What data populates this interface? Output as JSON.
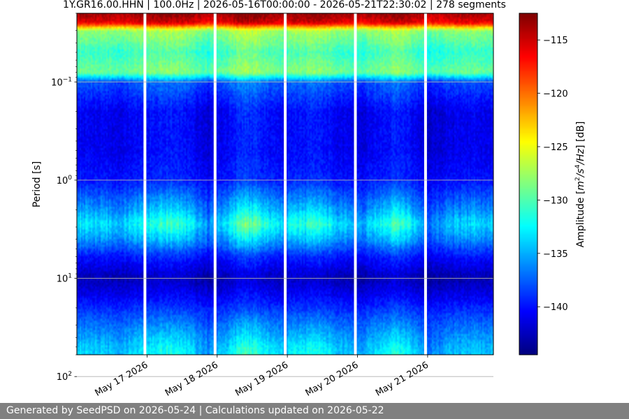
{
  "chart_data": {
    "type": "heatmap",
    "title": "1Y.GR16.00.HHN | 100.0Hz | 2026-05-16T00:00:00 - 2026-05-21T22:30:02 | 278 segments",
    "ylabel": "Period [s]",
    "y_scale": "log",
    "y_inverted": true,
    "ylim": [
      0.02,
      60
    ],
    "y_ticks": [
      {
        "value": 0.1,
        "base": "10",
        "exp": "−1"
      },
      {
        "value": 1,
        "base": "10",
        "exp": "0"
      },
      {
        "value": 10,
        "base": "10",
        "exp": "1"
      },
      {
        "value": 100,
        "base": "10",
        "exp": "2"
      }
    ],
    "xlim": [
      "2026-05-16T00:00:00",
      "2026-05-21T22:30:02"
    ],
    "x_tick_labels": [
      {
        "date": "2026-05-17",
        "label": "May 17 2026"
      },
      {
        "date": "2026-05-18",
        "label": "May 18 2026"
      },
      {
        "date": "2026-05-19",
        "label": "May 19 2026"
      },
      {
        "date": "2026-05-20",
        "label": "May 20 2026"
      },
      {
        "date": "2026-05-21",
        "label": "May 21 2026"
      }
    ],
    "grid": true,
    "colorbar": {
      "label": "Amplitude [m²/s⁴/Hz] [dB]",
      "label_parts": {
        "pre": "Amplitude [",
        "a": "m",
        "a_exp": "2",
        "b": "/s",
        "b_exp": "4",
        "c": "/Hz",
        "post": "] [dB]"
      },
      "colormap": "jet",
      "range": [
        -144.5,
        -112.5
      ],
      "ticks": [
        -115,
        -120,
        -125,
        -130,
        -135,
        -140
      ],
      "tick_labels": [
        "−115",
        "−120",
        "−125",
        "−130",
        "−135",
        "−140"
      ]
    },
    "data_gaps_days": [
      0.97,
      1.97,
      2.97,
      3.97,
      4.97
    ],
    "day_activity": [
      [
        0.0,
        0.95
      ],
      [
        0.6,
        0.8
      ],
      [
        1.3,
        1.35
      ],
      [
        1.5,
        1.2
      ],
      [
        1.9,
        0.5
      ],
      [
        2.4,
        1.55
      ],
      [
        2.6,
        1.4
      ],
      [
        2.9,
        0.9
      ],
      [
        3.4,
        1.3
      ],
      [
        3.7,
        0.95
      ],
      [
        4.0,
        0.6
      ],
      [
        4.5,
        1.35
      ],
      [
        4.7,
        1.2
      ],
      [
        5.0,
        0.4
      ],
      [
        5.5,
        0.9
      ],
      [
        5.93,
        0.8
      ]
    ],
    "period_profile_db": [
      [
        0.02,
        -113.5
      ],
      [
        0.025,
        -116
      ],
      [
        0.03,
        -128
      ],
      [
        0.05,
        -131
      ],
      [
        0.08,
        -129
      ],
      [
        0.1,
        -138
      ],
      [
        0.2,
        -141
      ],
      [
        0.5,
        -141
      ],
      [
        1.0,
        -140
      ],
      [
        2.0,
        -136
      ],
      [
        2.8,
        -133.5
      ],
      [
        4.0,
        -136
      ],
      [
        6.0,
        -140
      ],
      [
        10.0,
        -143
      ],
      [
        15.0,
        -141
      ],
      [
        25.0,
        -138
      ],
      [
        50.0,
        -134.5
      ],
      [
        100.0,
        -133
      ],
      [
        200.0,
        -131.5
      ],
      [
        400.0,
        -130
      ],
      [
        600.0,
        -126.5
      ]
    ],
    "period_sensitivity": [
      [
        0.02,
        0.3
      ],
      [
        0.04,
        0.4
      ],
      [
        0.08,
        0.4
      ],
      [
        0.2,
        0.4
      ],
      [
        1.0,
        0.3
      ],
      [
        2.8,
        1.0
      ],
      [
        6.0,
        0.3
      ],
      [
        20.0,
        0.2
      ],
      [
        50.0,
        0.7
      ],
      [
        150.0,
        1.0
      ],
      [
        600.0,
        1.2
      ]
    ]
  },
  "footer": "Generated by SeedPSD on 2026-05-24 | Calculations updated on 2026-05-22"
}
